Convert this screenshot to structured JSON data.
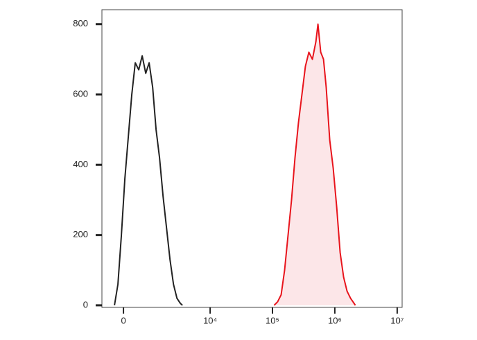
{
  "chart_data": {
    "type": "histogram-overlay",
    "x_scale": "arcsinh",
    "xlim": [
      -720,
      12000000
    ],
    "ylim": [
      -6,
      841
    ],
    "yticks": [
      0,
      200,
      400,
      600,
      800
    ],
    "xticks": [
      0,
      {
        "value": 10000,
        "label": "10⁴"
      },
      {
        "value": 100000,
        "label": "10⁵"
      },
      {
        "value": 1000000,
        "label": "10⁶"
      },
      {
        "value": 10000000,
        "label": "10⁷"
      }
    ],
    "series": [
      {
        "color": "#222222",
        "fill": null,
        "x": [
          -277,
          -168,
          -63,
          42,
          147,
          255,
          367,
          485,
          611,
          748,
          895,
          1061,
          1239,
          1436,
          1668,
          1917,
          2203,
          2522,
          2880,
          3297,
          3558
        ],
        "values": [
          0,
          60,
          200,
          360,
          480,
          600,
          690,
          670,
          710,
          660,
          690,
          620,
          500,
          420,
          310,
          220,
          130,
          60,
          20,
          5,
          0
        ]
      },
      {
        "color": "#e8141c",
        "fill": "#fce6e8",
        "x": [
          106400,
          121000,
          137600,
          156400,
          177800,
          202100,
          229800,
          261400,
          297100,
          337800,
          384000,
          436600,
          496500,
          535700,
          593600,
          658100,
          728300,
          828200,
          941700,
          1070600,
          1216200,
          1382700,
          1572000,
          1787900,
          2139000
        ],
        "values": [
          0,
          10,
          30,
          100,
          200,
          300,
          420,
          520,
          600,
          680,
          720,
          700,
          750,
          800,
          720,
          700,
          620,
          470,
          390,
          280,
          150,
          80,
          40,
          20,
          0
        ]
      }
    ]
  }
}
